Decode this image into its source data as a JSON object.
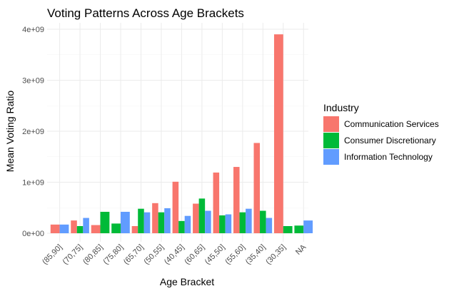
{
  "chart_data": {
    "type": "bar",
    "title": "Voting Patterns Across Age Brackets",
    "xlabel": "Age Bracket",
    "ylabel": "Mean Voting Ratio",
    "ylim": [
      0,
      4150000000
    ],
    "y_ticks": [
      0,
      1000000000,
      2000000000,
      3000000000,
      4000000000
    ],
    "y_tick_labels": [
      "0e+00",
      "1e+09",
      "2e+09",
      "3e+09",
      "4e+09"
    ],
    "grid": true,
    "legend": {
      "title": "Industry",
      "position": "right"
    },
    "categories": [
      "(85,90]",
      "(70,75]",
      "(80,85]",
      "(75,80]",
      "(65,70]",
      "(50,55]",
      "(40,45]",
      "(60,65]",
      "(45,50]",
      "(55,60]",
      "(35,40]",
      "(30,35]",
      "NA"
    ],
    "series": [
      {
        "name": "Communication Services",
        "color": "#F8766D",
        "values": [
          170000000,
          250000000,
          160000000,
          null,
          140000000,
          590000000,
          1010000000,
          580000000,
          1190000000,
          1300000000,
          1770000000,
          3900000000,
          null
        ]
      },
      {
        "name": "Consumer Discretionary",
        "color": "#00BA38",
        "values": [
          null,
          140000000,
          420000000,
          190000000,
          480000000,
          410000000,
          240000000,
          680000000,
          350000000,
          410000000,
          440000000,
          140000000,
          150000000
        ]
      },
      {
        "name": "Information Technology",
        "color": "#619CFF",
        "values": [
          170000000,
          300000000,
          null,
          420000000,
          410000000,
          490000000,
          340000000,
          440000000,
          370000000,
          480000000,
          300000000,
          null,
          250000000
        ]
      }
    ]
  }
}
